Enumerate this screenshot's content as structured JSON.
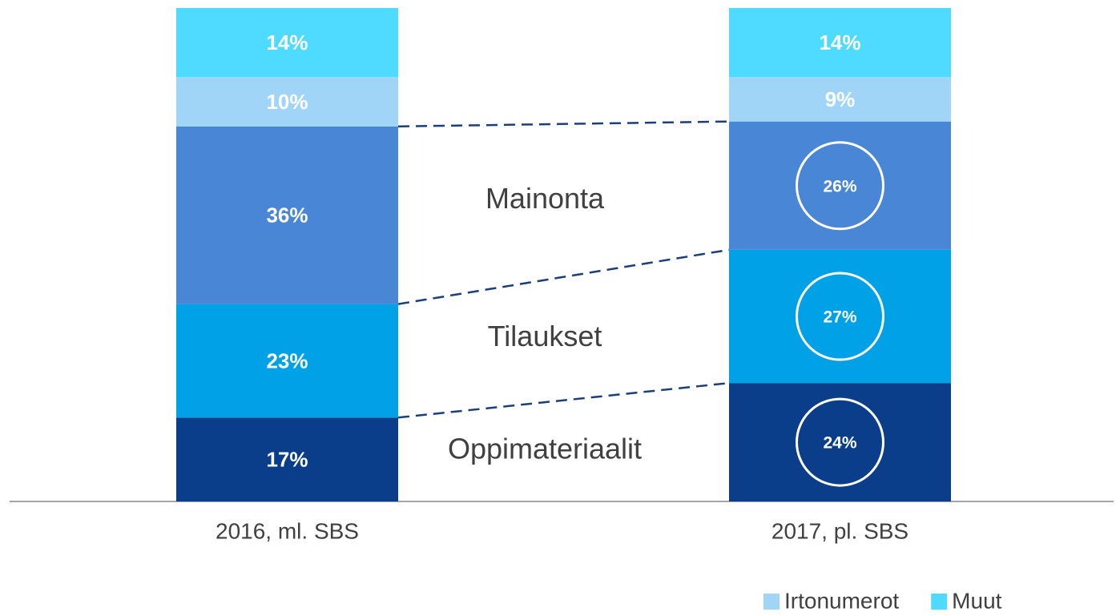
{
  "chart_data": {
    "type": "stacked_bar",
    "categories": [
      "2016, ml. SBS",
      "2017, pl. SBS"
    ],
    "ylim": [
      0,
      100
    ],
    "series": [
      {
        "name": "Oppimateriaalit",
        "color": "#0b3e8a",
        "values": [
          17,
          24
        ],
        "value_labels": [
          "17%",
          "24%"
        ],
        "in_legend": false,
        "circled": [
          false,
          true
        ]
      },
      {
        "name": "Tilaukset",
        "color": "#00a1e6",
        "values": [
          23,
          27
        ],
        "value_labels": [
          "23%",
          "27%"
        ],
        "in_legend": false,
        "circled": [
          false,
          true
        ]
      },
      {
        "name": "Mainonta",
        "color": "#4a86d6",
        "values": [
          36,
          26
        ],
        "value_labels": [
          "36%",
          "26%"
        ],
        "in_legend": false,
        "circled": [
          false,
          true
        ]
      },
      {
        "name": "Irtonumerot",
        "color": "#a0d5f8",
        "values": [
          10,
          9
        ],
        "value_labels": [
          "10%",
          "9%"
        ],
        "in_legend": true,
        "circled": [
          false,
          false
        ]
      },
      {
        "name": "Muut",
        "color": "#4fdbff",
        "values": [
          14,
          14
        ],
        "value_labels": [
          "14%",
          "14%"
        ],
        "in_legend": true,
        "circled": [
          false,
          false
        ]
      }
    ]
  }
}
